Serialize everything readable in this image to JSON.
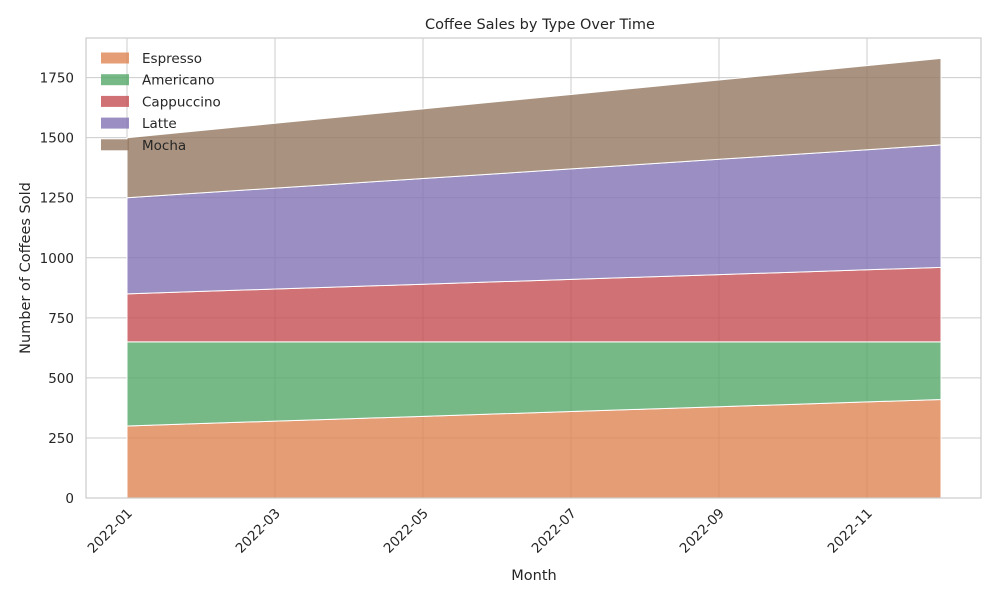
{
  "chart_data": {
    "type": "area",
    "stacked": true,
    "title": "Coffee Sales by Type Over Time",
    "xlabel": "Month",
    "ylabel": "Number of Coffees Sold",
    "x": [
      "2022-01",
      "2022-02",
      "2022-03",
      "2022-04",
      "2022-05",
      "2022-06",
      "2022-07",
      "2022-08",
      "2022-09",
      "2022-10",
      "2022-11",
      "2022-12"
    ],
    "x_tick_labels": [
      "2022-01",
      "2022-03",
      "2022-05",
      "2022-07",
      "2022-09",
      "2022-11"
    ],
    "y_ticks": [
      0,
      250,
      500,
      750,
      1000,
      1250,
      1500,
      1750
    ],
    "ylim": [
      0,
      1915
    ],
    "grid": true,
    "legend_position": "top-left",
    "series": [
      {
        "name": "Espresso",
        "color": "#dd8452",
        "values": [
          300,
          310,
          320,
          330,
          340,
          350,
          360,
          370,
          380,
          390,
          400,
          410
        ]
      },
      {
        "name": "Americano",
        "color": "#55a868",
        "values": [
          350,
          340,
          330,
          320,
          310,
          300,
          290,
          280,
          270,
          260,
          250,
          240
        ]
      },
      {
        "name": "Cappuccino",
        "color": "#c44e52",
        "values": [
          200,
          210,
          220,
          230,
          240,
          250,
          260,
          270,
          280,
          290,
          300,
          310
        ]
      },
      {
        "name": "Latte",
        "color": "#8172b3",
        "values": [
          400,
          410,
          420,
          430,
          440,
          450,
          460,
          470,
          480,
          490,
          500,
          510
        ]
      },
      {
        "name": "Mocha",
        "color": "#937860",
        "values": [
          250,
          260,
          270,
          280,
          290,
          300,
          310,
          320,
          330,
          340,
          350,
          360
        ]
      }
    ]
  }
}
